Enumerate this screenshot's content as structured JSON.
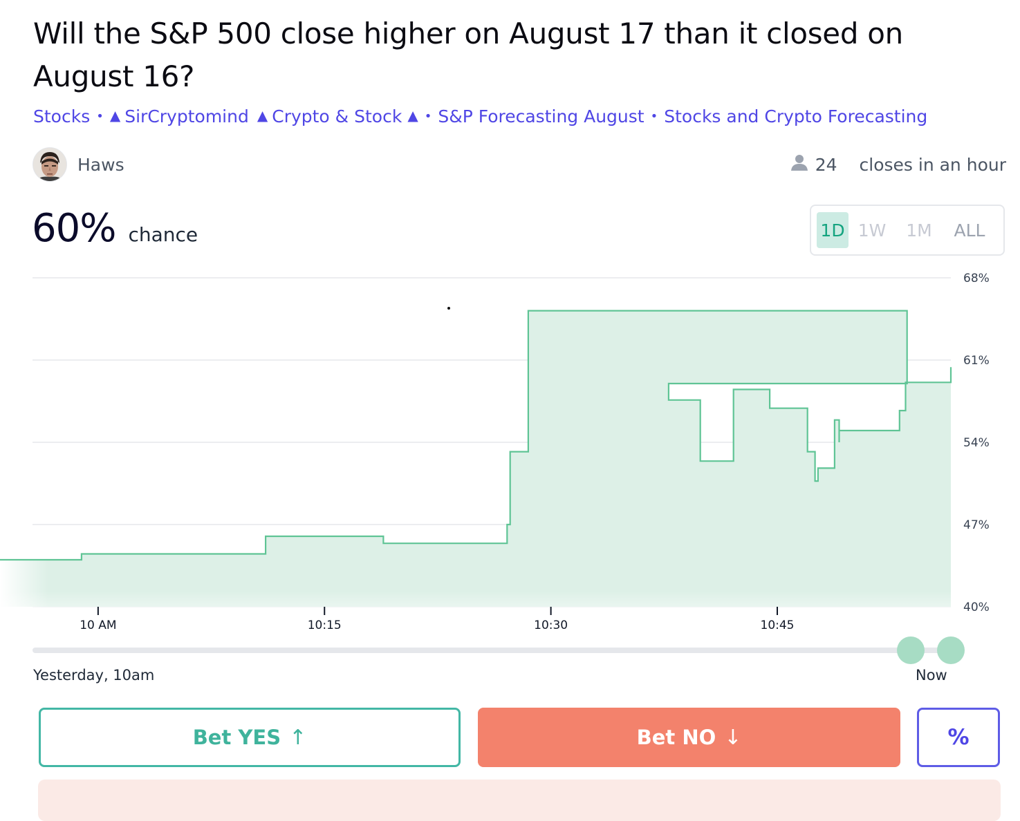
{
  "market": {
    "title": "Will the S&P 500 close higher on August 17 than it closed on August 16?",
    "tags": [
      "Stocks",
      "SirCryptomind",
      "Crypto & Stock",
      "S&P Forecasting August",
      "Stocks and Crypto Forecasting"
    ],
    "creator": "Haws",
    "traders": "24",
    "closes": "closes in an hour",
    "probability": "60%",
    "probability_label": "chance"
  },
  "range_options": [
    "1D",
    "1W",
    "1M",
    "ALL"
  ],
  "selected_range": "1D",
  "slider": {
    "start_label": "Yesterday, 10am",
    "end_label": "Now"
  },
  "actions": {
    "yes": "Bet YES",
    "no": "Bet NO",
    "percent": "%"
  },
  "icons": {
    "yes_arrow": "arrow-up-icon",
    "no_arrow": "arrow-down-icon",
    "traders": "user-icon",
    "triangle": "triangle-icon"
  },
  "colors": {
    "accent": "#4f46e5",
    "yes": "#43b7a5",
    "no": "#f3826c",
    "line": "#5fc495",
    "fill": "#ddf0e7"
  },
  "chart_data": {
    "type": "line",
    "x_ticks": [
      "10 AM",
      "10:15",
      "10:30",
      "10:45"
    ],
    "y_ticks": [
      "68%",
      "61%",
      "54%",
      "47%",
      "40%"
    ],
    "ylim": [
      40,
      68
    ],
    "xlim_minutes": [
      -6.5,
      56.5
    ],
    "series": [
      {
        "points": [
          [
            -6.5,
            44
          ],
          [
            -1.1,
            44
          ],
          [
            -1.1,
            44.5
          ],
          [
            11.1,
            44.5
          ],
          [
            11.1,
            46
          ],
          [
            18.9,
            46
          ],
          [
            18.9,
            45.4
          ],
          [
            27.1,
            45.4
          ],
          [
            27.1,
            47
          ],
          [
            27.3,
            47
          ],
          [
            27.3,
            53.2
          ],
          [
            28.5,
            53.2
          ],
          [
            28.5,
            65.2
          ],
          [
            53.6,
            65.2
          ],
          [
            53.6,
            59
          ],
          [
            37.8,
            59
          ],
          [
            37.8,
            57.6
          ],
          [
            39.9,
            57.6
          ],
          [
            39.9,
            52.4
          ],
          [
            42.1,
            52.4
          ],
          [
            42.1,
            58.5
          ],
          [
            44.5,
            58.5
          ],
          [
            44.5,
            56.9
          ],
          [
            47,
            56.9
          ],
          [
            47,
            53.2
          ],
          [
            47.5,
            53.2
          ],
          [
            47.5,
            50.7
          ],
          [
            47.7,
            50.7
          ],
          [
            47.7,
            51.8
          ],
          [
            48.8,
            51.8
          ],
          [
            48.8,
            55.9
          ],
          [
            49.1,
            55.9
          ],
          [
            49.1,
            54
          ],
          [
            49.1,
            55
          ],
          [
            53.1,
            55
          ],
          [
            53.1,
            56.7
          ],
          [
            53.5,
            56.7
          ],
          [
            53.5,
            59.1
          ],
          [
            56.5,
            59.1
          ],
          [
            56.5,
            60.4
          ]
        ]
      }
    ]
  }
}
